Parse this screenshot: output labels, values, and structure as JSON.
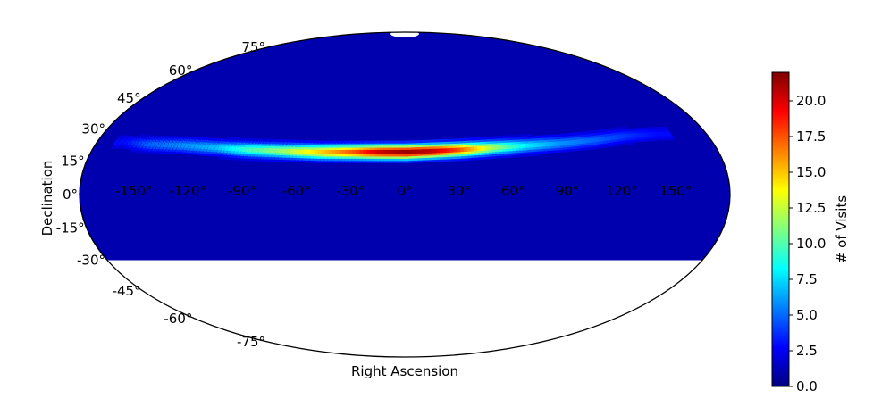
{
  "chart_data": {
    "type": "heatmap",
    "projection": "mollweide",
    "xlabel": "Right Ascension",
    "ylabel": "Declination",
    "ra_ticks": [
      "-150°",
      "-120°",
      "-90°",
      "-60°",
      "-30°",
      "0°",
      "30°",
      "60°",
      "90°",
      "120°",
      "150°"
    ],
    "dec_ticks": [
      "75°",
      "60°",
      "45°",
      "30°",
      "15°",
      "0°",
      "-15°",
      "-30°",
      "-45°",
      "-60°",
      "-75°"
    ],
    "coverage_dec_range": [
      -30,
      87
    ],
    "background_value": 1,
    "colorbar": {
      "label": "# of Visits",
      "range": [
        0,
        22
      ],
      "ticks": [
        "0.0",
        "2.5",
        "5.0",
        "7.5",
        "10.0",
        "12.5",
        "15.0",
        "17.5",
        "20.0"
      ],
      "colormap": "jet"
    },
    "band_profile": {
      "ra": [
        -165,
        -150,
        -130,
        -110,
        -90,
        -70,
        -50,
        -30,
        -15,
        0,
        15,
        30,
        50,
        70,
        90,
        110,
        130,
        150
      ],
      "center_dec": [
        24,
        23,
        22.5,
        21.5,
        20.5,
        20,
        19.5,
        19.5,
        19.5,
        19.5,
        20,
        20.5,
        21.5,
        22.5,
        23.5,
        25,
        27,
        28
      ],
      "peak_visits": [
        3,
        5,
        6,
        7,
        10,
        12,
        15,
        18,
        21,
        22,
        21,
        18,
        12,
        8,
        6,
        5,
        4,
        3
      ]
    }
  }
}
